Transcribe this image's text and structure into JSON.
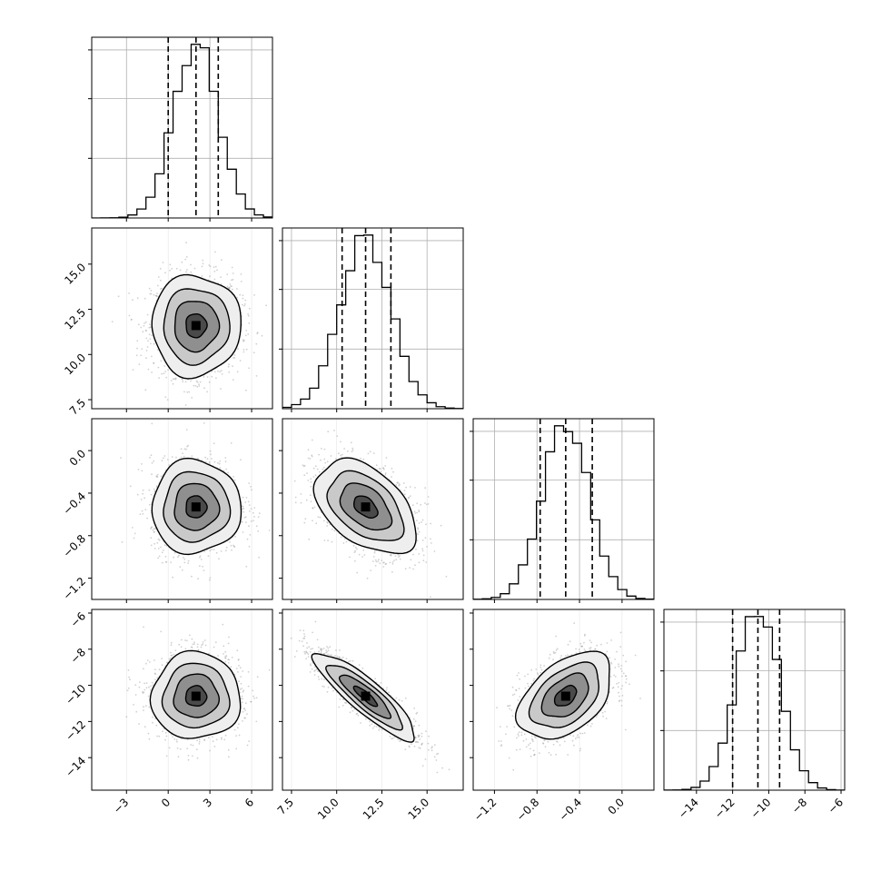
{
  "chart_data": {
    "type": "corner",
    "parameters": [
      {
        "ticks": [
          "−3",
          "0",
          "3",
          "6"
        ],
        "range": [
          -5.5,
          7.5
        ],
        "quantiles": [
          0.0,
          2.0,
          3.6
        ],
        "mean": 2.0,
        "sd": 1.6
      },
      {
        "ticks": [
          "7.5",
          "10.0",
          "12.5",
          "15.0"
        ],
        "range": [
          7.0,
          17.0
        ],
        "quantiles": [
          10.3,
          11.6,
          13.0
        ],
        "mean": 11.6,
        "sd": 1.4
      },
      {
        "ticks": [
          "−1.2",
          "−0.8",
          "−0.4",
          "0.0"
        ],
        "range": [
          -1.4,
          0.3
        ],
        "quantiles": [
          -0.77,
          -0.53,
          -0.28
        ],
        "mean": -0.53,
        "sd": 0.22
      },
      {
        "ticks": [
          "−14",
          "−12",
          "−10",
          "−8",
          "−6"
        ],
        "range": [
          -15.8,
          -5.8
        ],
        "quantiles": [
          -12.0,
          -10.6,
          -9.4
        ],
        "mean": -10.6,
        "sd": 1.2
      }
    ],
    "correlations": [
      {
        "i": 1,
        "j": 0,
        "rho": 0.0
      },
      {
        "i": 2,
        "j": 0,
        "rho": 0.0
      },
      {
        "i": 2,
        "j": 1,
        "rho": -0.45
      },
      {
        "i": 3,
        "j": 0,
        "rho": 0.0
      },
      {
        "i": 3,
        "j": 1,
        "rho": -0.88
      },
      {
        "i": 3,
        "j": 2,
        "rho": 0.45
      }
    ],
    "histogram_bins": 20,
    "grid": true,
    "contour_levels": 4
  }
}
